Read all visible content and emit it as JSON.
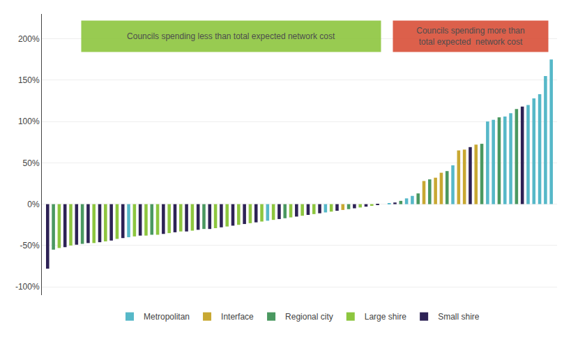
{
  "chart_data": {
    "type": "bar",
    "categories": [
      null,
      null,
      null,
      null,
      null,
      null,
      null,
      null,
      null,
      null,
      null,
      null,
      null,
      null,
      null,
      null,
      null,
      null,
      null,
      null,
      null,
      null,
      null,
      null,
      null,
      null,
      null,
      null,
      null,
      null,
      null,
      null,
      null,
      null,
      null,
      null,
      null,
      null,
      null,
      null,
      null,
      null,
      null,
      null,
      null,
      null,
      null,
      null,
      null,
      null,
      null,
      null,
      null,
      null,
      null,
      null,
      null,
      null,
      null,
      null,
      null,
      null,
      null,
      null,
      null,
      null,
      null,
      null,
      null,
      null,
      null,
      null,
      null,
      null,
      null,
      null,
      null,
      null,
      null,
      null,
      null,
      null,
      null,
      null,
      null,
      null,
      null,
      null
    ],
    "series": [
      {
        "name": "Metropolitan",
        "color": "#56b8c8",
        "values": [
          null,
          null,
          null,
          null,
          null,
          null,
          null,
          null,
          null,
          null,
          null,
          null,
          null,
          null,
          -40,
          null,
          null,
          null,
          null,
          null,
          null,
          null,
          null,
          null,
          null,
          null,
          null,
          null,
          null,
          null,
          null,
          null,
          null,
          null,
          null,
          null,
          null,
          null,
          -20,
          null,
          null,
          null,
          null,
          null,
          null,
          null,
          null,
          null,
          -10,
          null,
          null,
          null,
          null,
          null,
          null,
          null,
          null,
          null,
          0,
          1,
          null,
          null,
          7,
          10,
          null,
          null,
          null,
          null,
          null,
          null,
          47,
          null,
          null,
          null,
          null,
          null,
          100,
          102,
          null,
          106,
          110,
          null,
          null,
          120,
          128,
          133,
          155,
          175
        ]
      },
      {
        "name": "Interface",
        "color": "#c8a832",
        "values": [
          null,
          null,
          null,
          null,
          null,
          null,
          null,
          null,
          null,
          null,
          null,
          null,
          null,
          null,
          null,
          null,
          null,
          null,
          null,
          null,
          null,
          null,
          null,
          null,
          null,
          null,
          null,
          null,
          null,
          null,
          null,
          null,
          null,
          null,
          null,
          null,
          null,
          null,
          null,
          null,
          null,
          null,
          null,
          null,
          null,
          null,
          null,
          null,
          null,
          null,
          null,
          -7,
          null,
          null,
          null,
          null,
          null,
          null,
          null,
          null,
          null,
          null,
          null,
          null,
          null,
          28,
          null,
          32,
          38,
          null,
          null,
          65,
          66,
          null,
          72,
          null,
          null,
          null,
          null,
          null,
          null,
          null,
          null,
          null,
          null,
          null,
          null,
          null
        ]
      },
      {
        "name": "Regional city",
        "color": "#4a9860",
        "values": [
          null,
          -55,
          null,
          null,
          null,
          null,
          -48,
          null,
          null,
          null,
          null,
          null,
          null,
          null,
          null,
          null,
          null,
          null,
          -37,
          null,
          null,
          null,
          null,
          null,
          null,
          null,
          null,
          -30,
          null,
          null,
          null,
          null,
          null,
          null,
          null,
          null,
          null,
          null,
          null,
          null,
          null,
          -17,
          null,
          null,
          null,
          null,
          null,
          null,
          null,
          null,
          null,
          null,
          -6,
          null,
          null,
          null,
          null,
          null,
          null,
          null,
          null,
          4,
          null,
          null,
          13,
          null,
          30,
          null,
          null,
          40,
          null,
          null,
          null,
          null,
          null,
          73,
          null,
          null,
          105,
          null,
          null,
          115,
          null,
          null,
          null,
          null,
          null,
          null
        ]
      },
      {
        "name": "Large shire",
        "color": "#8dc63f",
        "values": [
          null,
          null,
          -53,
          null,
          -50,
          null,
          null,
          null,
          -47,
          null,
          -45,
          null,
          -42,
          null,
          null,
          -39,
          null,
          -38,
          null,
          -37,
          null,
          -35,
          null,
          -33,
          null,
          -32,
          null,
          null,
          null,
          -29,
          null,
          -27,
          null,
          -25,
          null,
          -23,
          null,
          -21,
          null,
          -19,
          null,
          null,
          -16,
          null,
          -14,
          null,
          -12,
          null,
          null,
          -9,
          null,
          null,
          null,
          null,
          -4,
          null,
          -2,
          null,
          null,
          null,
          null,
          null,
          null,
          null,
          null,
          null,
          null,
          null,
          null,
          null,
          null,
          null,
          null,
          null,
          null,
          null,
          null,
          null,
          null,
          null,
          null,
          null,
          null,
          null,
          null,
          null,
          null,
          null
        ]
      },
      {
        "name": "Small shire",
        "color": "#2d2255",
        "values": [
          -78,
          null,
          null,
          -52,
          null,
          -49,
          null,
          -47,
          null,
          -46,
          null,
          -44,
          null,
          -41,
          null,
          null,
          -38,
          null,
          null,
          null,
          -36,
          null,
          -34,
          null,
          -33,
          null,
          -31,
          null,
          -30,
          null,
          -28,
          null,
          -26,
          null,
          -24,
          null,
          -22,
          null,
          null,
          null,
          -18,
          null,
          null,
          -15,
          null,
          -13,
          null,
          -11,
          null,
          null,
          -8,
          null,
          null,
          -5,
          null,
          -3,
          null,
          -1,
          null,
          null,
          2,
          null,
          null,
          null,
          null,
          null,
          null,
          null,
          null,
          null,
          null,
          null,
          null,
          69,
          null,
          null,
          null,
          null,
          null,
          null,
          null,
          null,
          118,
          null,
          null,
          null,
          null,
          null
        ]
      }
    ],
    "annotations": [
      {
        "text": "Councils spending less than total expected network cost",
        "color": "#8dc63f"
      },
      {
        "text": "Councils spending more than\ntotal expected  network cost",
        "color": "#d94f38"
      }
    ],
    "ylim": [
      -110,
      230
    ],
    "yticks": [
      {
        "value": -100,
        "label": "-100%"
      },
      {
        "value": -50,
        "label": "-50%"
      },
      {
        "value": 0,
        "label": "0%"
      },
      {
        "value": 50,
        "label": "50%"
      },
      {
        "value": 100,
        "label": "100%"
      },
      {
        "value": 150,
        "label": "150%"
      },
      {
        "value": 200,
        "label": "200%"
      }
    ],
    "grid": true,
    "legend": "bottom",
    "tick_labels": "y"
  }
}
